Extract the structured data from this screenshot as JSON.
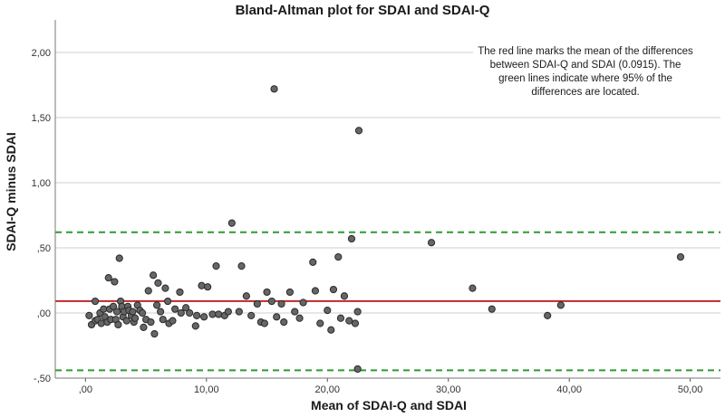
{
  "chart_data": {
    "type": "scatter",
    "title": "Bland-Altman plot for SDAI and SDAI-Q",
    "xlabel": "Mean of SDAI-Q and SDAI",
    "ylabel": "SDAI-Q minus SDAI",
    "xlim": [
      -2.5,
      52.5
    ],
    "ylim": [
      -0.5,
      2.25
    ],
    "x_ticks": [
      0,
      10,
      20,
      30,
      40,
      50
    ],
    "x_tick_labels": [
      ",00",
      "10,00",
      "20,00",
      "30,00",
      "40,00",
      "50,00"
    ],
    "y_ticks": [
      -0.5,
      0,
      0.5,
      1.0,
      1.5,
      2.0
    ],
    "y_tick_labels": [
      "-,50",
      ",00",
      ",50",
      "1,00",
      "1,50",
      "2,00"
    ],
    "grid": "horizontal",
    "mean_line": {
      "value": 0.0915,
      "color": "#c0282a"
    },
    "limits_of_agreement": {
      "values": [
        -0.44,
        0.62
      ],
      "color": "#2e9a32"
    },
    "marker_color": "#666666",
    "annotation": "The red line marks the mean of the differences between SDAI-Q and SDAI (0.0915). The green lines indicate where 95% of the differences are located.",
    "points": [
      [
        0.3,
        -0.02
      ],
      [
        0.5,
        -0.09
      ],
      [
        0.8,
        -0.06
      ],
      [
        0.8,
        0.09
      ],
      [
        1.0,
        -0.05
      ],
      [
        1.2,
        0.0
      ],
      [
        1.3,
        -0.08
      ],
      [
        1.5,
        0.03
      ],
      [
        1.6,
        -0.03
      ],
      [
        1.8,
        -0.07
      ],
      [
        1.9,
        0.27
      ],
      [
        2.0,
        0.03
      ],
      [
        2.1,
        -0.05
      ],
      [
        2.3,
        0.05
      ],
      [
        2.4,
        0.24
      ],
      [
        2.5,
        -0.05
      ],
      [
        2.6,
        0.01
      ],
      [
        2.7,
        -0.09
      ],
      [
        2.8,
        0.42
      ],
      [
        2.9,
        0.09
      ],
      [
        3.0,
        0.05
      ],
      [
        3.1,
        -0.03
      ],
      [
        3.2,
        0.01
      ],
      [
        3.4,
        -0.06
      ],
      [
        3.5,
        0.05
      ],
      [
        3.6,
        0.02
      ],
      [
        3.8,
        -0.02
      ],
      [
        3.9,
        0.01
      ],
      [
        4.0,
        -0.07
      ],
      [
        4.1,
        -0.04
      ],
      [
        4.3,
        0.06
      ],
      [
        4.5,
        0.02
      ],
      [
        4.7,
        0.0
      ],
      [
        4.8,
        -0.11
      ],
      [
        5.0,
        -0.05
      ],
      [
        5.2,
        0.17
      ],
      [
        5.4,
        -0.07
      ],
      [
        5.6,
        0.29
      ],
      [
        5.7,
        -0.16
      ],
      [
        5.9,
        0.06
      ],
      [
        6.0,
        0.23
      ],
      [
        6.2,
        0.01
      ],
      [
        6.4,
        -0.05
      ],
      [
        6.6,
        0.19
      ],
      [
        6.8,
        0.09
      ],
      [
        6.9,
        -0.08
      ],
      [
        7.2,
        -0.06
      ],
      [
        7.4,
        0.03
      ],
      [
        7.8,
        0.16
      ],
      [
        7.9,
        0.0
      ],
      [
        8.3,
        0.04
      ],
      [
        8.6,
        0.0
      ],
      [
        9.1,
        -0.1
      ],
      [
        9.2,
        -0.02
      ],
      [
        9.6,
        0.21
      ],
      [
        9.8,
        -0.03
      ],
      [
        10.1,
        0.2
      ],
      [
        10.5,
        -0.01
      ],
      [
        10.8,
        0.36
      ],
      [
        11.0,
        -0.01
      ],
      [
        11.5,
        -0.02
      ],
      [
        11.8,
        0.01
      ],
      [
        12.1,
        0.69
      ],
      [
        12.7,
        0.01
      ],
      [
        12.9,
        0.36
      ],
      [
        13.3,
        0.13
      ],
      [
        13.7,
        -0.02
      ],
      [
        14.2,
        0.07
      ],
      [
        14.5,
        -0.07
      ],
      [
        14.8,
        -0.08
      ],
      [
        15.0,
        0.16
      ],
      [
        15.4,
        0.09
      ],
      [
        15.6,
        1.72
      ],
      [
        15.8,
        -0.03
      ],
      [
        16.2,
        0.07
      ],
      [
        16.4,
        -0.07
      ],
      [
        16.9,
        0.16
      ],
      [
        17.3,
        0.01
      ],
      [
        17.7,
        -0.04
      ],
      [
        18.0,
        0.08
      ],
      [
        18.8,
        0.39
      ],
      [
        19.0,
        0.17
      ],
      [
        19.4,
        -0.08
      ],
      [
        20.0,
        0.02
      ],
      [
        20.3,
        -0.13
      ],
      [
        20.5,
        0.18
      ],
      [
        20.9,
        0.43
      ],
      [
        21.1,
        -0.04
      ],
      [
        21.4,
        0.13
      ],
      [
        21.8,
        -0.06
      ],
      [
        22.0,
        0.57
      ],
      [
        22.3,
        -0.08
      ],
      [
        22.6,
        1.4
      ],
      [
        22.5,
        -0.43
      ],
      [
        22.5,
        0.01
      ],
      [
        28.6,
        0.54
      ],
      [
        32.0,
        0.19
      ],
      [
        33.6,
        0.03
      ],
      [
        38.2,
        -0.02
      ],
      [
        39.3,
        0.06
      ],
      [
        49.2,
        0.43
      ]
    ]
  }
}
